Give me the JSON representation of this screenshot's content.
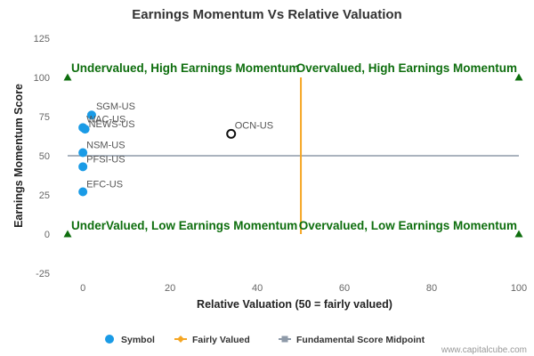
{
  "chart_data": {
    "type": "scatter",
    "title": "Earnings Momentum Vs Relative Valuation",
    "xlabel": "Relative Valuation (50 = fairly valued)",
    "ylabel": "Earnings Momentum Score",
    "xlim": [
      -3.5,
      100
    ],
    "ylim": [
      -25,
      125
    ],
    "x_ticks": [
      0,
      20,
      40,
      60,
      80,
      100
    ],
    "y_ticks": [
      -25,
      0,
      25,
      50,
      75,
      100,
      125
    ],
    "grid": false,
    "points": [
      {
        "label": "SGM-US",
        "x": 2,
        "y": 76
      },
      {
        "label": "WAC-US",
        "x": 0,
        "y": 68
      },
      {
        "label": "NEWS-US",
        "x": 0.5,
        "y": 67
      },
      {
        "label": "NSM-US",
        "x": 0,
        "y": 52
      },
      {
        "label": "PFSI-US",
        "x": 0,
        "y": 43
      },
      {
        "label": "EFC-US",
        "x": 0,
        "y": 27
      },
      {
        "label": "OCN-US",
        "x": 34,
        "y": 64,
        "highlighted": true
      }
    ],
    "fairly_valued_x": 50,
    "midpoint_y": 50,
    "quadrant_labels": {
      "top_left": "Undervalued, High Earnings Momentum",
      "top_right": "Overvalued, High Earnings Momentum",
      "bottom_left": "UnderValued, Low Earnings Momentum",
      "bottom_right": "Overvalued, Low Earnings Momentum"
    },
    "corner_markers": [
      {
        "x": -3.5,
        "y": 100
      },
      {
        "x": 100,
        "y": 100
      },
      {
        "x": -3.5,
        "y": 0
      },
      {
        "x": 100,
        "y": 0
      }
    ],
    "legend": {
      "placement": "bottom",
      "items": [
        {
          "label": "Symbol",
          "marker": "circle",
          "color": "#1a9be6"
        },
        {
          "label": "Fairly Valued",
          "marker": "diamond-line",
          "color": "#f5a623"
        },
        {
          "label": "Fundamental Score Midpoint",
          "marker": "square-line",
          "color": "#8e9aa8"
        }
      ]
    },
    "colors": {
      "symbol": "#1a9be6",
      "highlight_stroke": "#111111",
      "fairly_valued": "#f5a623",
      "midpoint": "#8e9aa8",
      "quadrant_text": "#0e6e0e",
      "marker": "#0e6e0e"
    },
    "credit": "www.capitalcube.com"
  }
}
